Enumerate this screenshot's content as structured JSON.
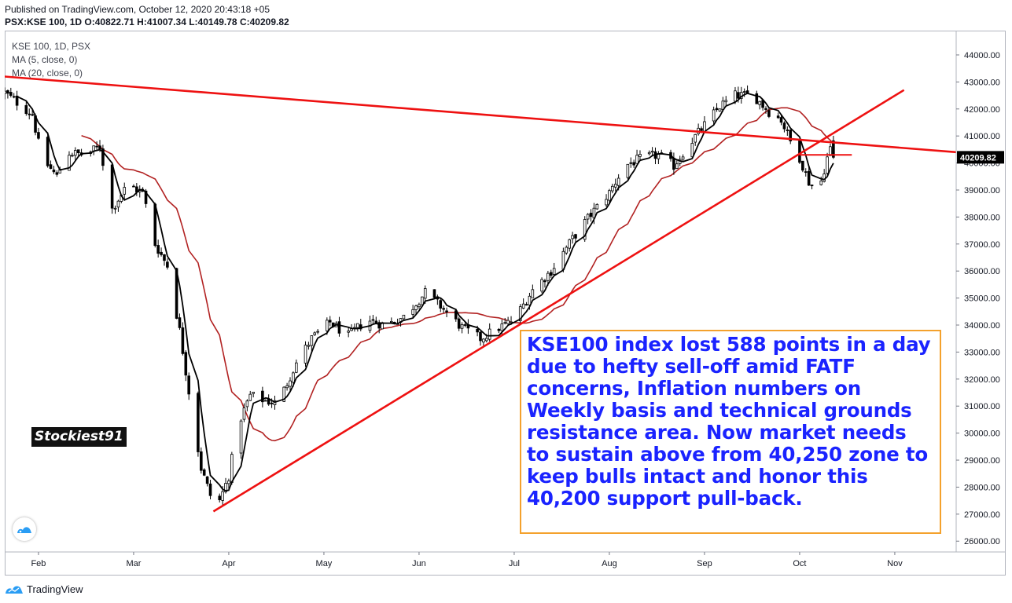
{
  "header": {
    "published": "Published on TradingView.com, October 12, 2020 20:43:18 +05",
    "symbol": "PSX:KSE 100, 1D",
    "open_label": "O:",
    "open": "40822.71",
    "high_label": "H:",
    "high": "41007.34",
    "low_label": "L:",
    "low": "40149.78",
    "close_label": "C:",
    "close": "40209.82"
  },
  "legend": {
    "title": "KSE 100, 1D, PSX",
    "ma5": "MA (5, close, 0)",
    "ma20": "MA (20, close, 0)"
  },
  "annotation": {
    "text": "KSE100 index lost 588 points in a day due to hefty sell-off amid FATF concerns, Inflation numbers on Weekly basis and technical grounds resistance area. Now market needs to sustain above from 40,250 zone to keep bulls intact and honor this 40,200 support pull-back."
  },
  "watermark": {
    "text": "Stockiest91"
  },
  "footer": {
    "brand": "TradingView"
  },
  "colors": {
    "up_candle": "#ffffff",
    "down_candle": "#000000",
    "candle_border": "#000000",
    "ma5": "#000000",
    "ma20": "#b22222",
    "trendline": "#ee1111",
    "annotation_border": "#f4a12c",
    "annotation_text": "#1a23ff",
    "price_label_bg": "#000000"
  },
  "chart_data": {
    "type": "candlestick",
    "title": "KSE 100, 1D, PSX",
    "y_axis": {
      "min": 25600,
      "max": 44900,
      "ticks": [
        26000,
        27000,
        28000,
        29000,
        30000,
        31000,
        32000,
        33000,
        34000,
        35000,
        36000,
        37000,
        38000,
        39000,
        40000,
        41000,
        42000,
        43000,
        44000
      ],
      "tick_labels": [
        "26000.00",
        "27000.00",
        "28000.00",
        "29000.00",
        "30000.00",
        "31000.00",
        "32000.00",
        "33000.00",
        "34000.00",
        "35000.00",
        "36000.00",
        "37000.00",
        "38000.00",
        "39000.00",
        "40000.00",
        "41000.00",
        "42000.00",
        "43000.00",
        "44000.00"
      ],
      "last_price": 40209.82,
      "last_price_label": "40209.82"
    },
    "x_axis": {
      "start_day": 0,
      "end_day": 310,
      "month_labels": [
        "Feb",
        "Mar",
        "Apr",
        "May",
        "Jun",
        "Jul",
        "Aug",
        "Sep",
        "Oct",
        "Nov"
      ],
      "month_days": [
        11,
        42,
        73,
        104,
        135,
        166,
        197,
        228,
        259,
        290
      ]
    },
    "path_points": [
      [
        0,
        42600
      ],
      [
        9,
        41800
      ],
      [
        12,
        40200
      ],
      [
        17,
        39500
      ],
      [
        20,
        40400
      ],
      [
        26,
        40300
      ],
      [
        31,
        40600
      ],
      [
        35,
        38300
      ],
      [
        40,
        39200
      ],
      [
        45,
        38900
      ],
      [
        49,
        37000
      ],
      [
        53,
        36200
      ],
      [
        57,
        33800
      ],
      [
        61,
        30800
      ],
      [
        64,
        28700
      ],
      [
        67,
        27700
      ],
      [
        70,
        27500
      ],
      [
        73,
        28400
      ],
      [
        76,
        30300
      ],
      [
        80,
        31400
      ],
      [
        85,
        31200
      ],
      [
        89,
        31100
      ],
      [
        95,
        32600
      ],
      [
        100,
        33500
      ],
      [
        106,
        34100
      ],
      [
        112,
        33600
      ],
      [
        118,
        34200
      ],
      [
        124,
        34000
      ],
      [
        130,
        34300
      ],
      [
        137,
        35200
      ],
      [
        142,
        34700
      ],
      [
        149,
        33900
      ],
      [
        155,
        33500
      ],
      [
        161,
        33900
      ],
      [
        166,
        34200
      ],
      [
        172,
        35300
      ],
      [
        178,
        36000
      ],
      [
        185,
        37200
      ],
      [
        191,
        38100
      ],
      [
        197,
        38900
      ],
      [
        202,
        39900
      ],
      [
        208,
        40200
      ],
      [
        213,
        40300
      ],
      [
        218,
        39900
      ],
      [
        223,
        40700
      ],
      [
        228,
        41400
      ],
      [
        233,
        42100
      ],
      [
        238,
        42500
      ],
      [
        244,
        42500
      ],
      [
        249,
        41900
      ],
      [
        253,
        41600
      ],
      [
        256,
        40800
      ],
      [
        259,
        40200
      ],
      [
        262,
        39300
      ],
      [
        265,
        38900
      ],
      [
        268,
        40200
      ],
      [
        270,
        40822.71
      ]
    ],
    "last_candle": {
      "open": 40822.71,
      "high": 41007.34,
      "low": 40149.78,
      "close": 40209.82
    },
    "moving_averages": [
      {
        "name": "MA (5, close, 0)",
        "period": 5
      },
      {
        "name": "MA (20, close, 0)",
        "period": 20
      }
    ],
    "trendlines": [
      {
        "name": "resistance",
        "from": [
          0,
          43200
        ],
        "to": [
          310,
          40400
        ]
      },
      {
        "name": "support",
        "from": [
          68,
          27100
        ],
        "to": [
          293,
          42700
        ]
      },
      {
        "name": "support-zone",
        "from": [
          259,
          40300
        ],
        "to": [
          276,
          40300
        ]
      }
    ]
  }
}
